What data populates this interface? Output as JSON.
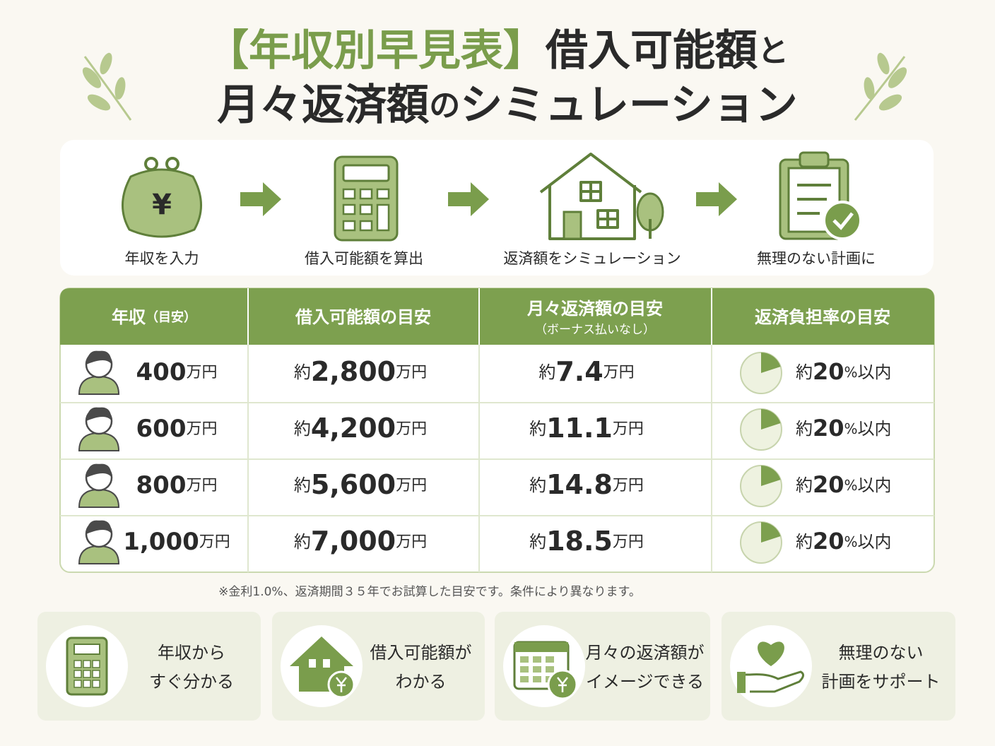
{
  "header": {
    "line1": [
      "【年収別早見表】",
      "借入可能額",
      "と"
    ],
    "line2": [
      "月々返済額",
      "の",
      "シミュレーション"
    ]
  },
  "steps": [
    "年収を入力",
    "借入可能額を算出",
    "返済額をシミュレーション",
    "無理のない計画に"
  ],
  "table": {
    "headers": [
      {
        "title": "年収",
        "note": "（目安）"
      },
      {
        "title": "借入可能額の目安"
      },
      {
        "title": "月々返済額の目安",
        "note": "（ボーナス払いなし）"
      },
      {
        "title": "返済負担率の目安"
      }
    ],
    "rows": [
      {
        "income": "400",
        "income_unit": "万円",
        "loan_prefix": "約",
        "loan": "2,800",
        "loan_unit": "万円",
        "monthly_prefix": "約",
        "monthly": "7.4",
        "monthly_unit": "万円",
        "ratio_prefix": "約",
        "ratio": 20,
        "ratio_unit": "%",
        "ratio_suffix": "以内"
      },
      {
        "income": "600",
        "income_unit": "万円",
        "loan_prefix": "約",
        "loan": "4,200",
        "loan_unit": "万円",
        "monthly_prefix": "約",
        "monthly": "11.1",
        "monthly_unit": "万円",
        "ratio_prefix": "約",
        "ratio": 20,
        "ratio_unit": "%",
        "ratio_suffix": "以内"
      },
      {
        "income": "800",
        "income_unit": "万円",
        "loan_prefix": "約",
        "loan": "5,600",
        "loan_unit": "万円",
        "monthly_prefix": "約",
        "monthly": "14.8",
        "monthly_unit": "万円",
        "ratio_prefix": "約",
        "ratio": 20,
        "ratio_unit": "%",
        "ratio_suffix": "以内"
      },
      {
        "income": "1,000",
        "income_unit": "万円",
        "loan_prefix": "約",
        "loan": "7,000",
        "loan_unit": "万円",
        "monthly_prefix": "約",
        "monthly": "18.5",
        "monthly_unit": "万円",
        "ratio_prefix": "約",
        "ratio": 20,
        "ratio_unit": "%",
        "ratio_suffix": "以内"
      }
    ]
  },
  "note": "※金利1.0%、返済期間３５年でお試算した目安です。条件により異なります。",
  "features": [
    [
      "年収から",
      "すぐ分かる"
    ],
    [
      "借入可能額が",
      "わかる"
    ],
    [
      "月々の返済額が",
      "イメージできる"
    ],
    [
      "無理のない",
      "計画をサポート"
    ]
  ]
}
